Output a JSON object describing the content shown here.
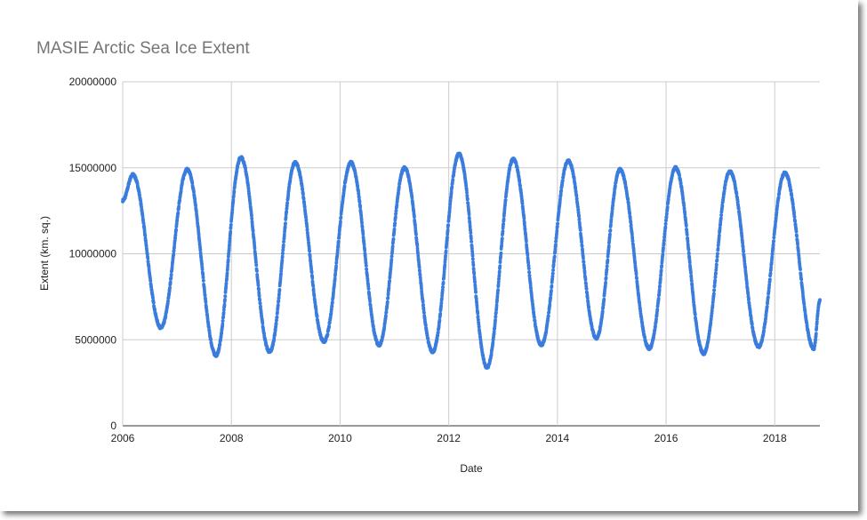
{
  "chart_data": {
    "type": "scatter",
    "title": "MASIE Arctic Sea Ice Extent",
    "xlabel": "Date",
    "ylabel": "Extent (km. sq.)",
    "xlim": [
      "2006-01-01",
      "2018-10-31"
    ],
    "ylim": [
      0,
      20000000
    ],
    "x_ticks": [
      "2006",
      "2008",
      "2010",
      "2012",
      "2014",
      "2016",
      "2018"
    ],
    "y_ticks": [
      "0",
      "5000000",
      "10000000",
      "15000000",
      "20000000"
    ],
    "grid": true,
    "legend": "none",
    "point_color": "#3b7ddd",
    "series": [
      {
        "points": [
          [
            "2006-01-01",
            13100000
          ],
          [
            "2006-03-10",
            14600000
          ],
          [
            "2006-09-15",
            5700000
          ],
          [
            "2007-03-10",
            14900000
          ],
          [
            "2007-09-20",
            4100000
          ],
          [
            "2008-03-05",
            15600000
          ],
          [
            "2008-09-15",
            4300000
          ],
          [
            "2009-03-05",
            15300000
          ],
          [
            "2009-09-15",
            4900000
          ],
          [
            "2010-03-15",
            15300000
          ],
          [
            "2010-09-20",
            4700000
          ],
          [
            "2011-03-10",
            15000000
          ],
          [
            "2011-09-15",
            4300000
          ],
          [
            "2012-03-10",
            15800000
          ],
          [
            "2012-09-15",
            3400000
          ],
          [
            "2013-03-10",
            15500000
          ],
          [
            "2013-09-15",
            4700000
          ],
          [
            "2014-03-15",
            15400000
          ],
          [
            "2014-09-20",
            5100000
          ],
          [
            "2015-02-25",
            14900000
          ],
          [
            "2015-09-10",
            4500000
          ],
          [
            "2016-03-05",
            15000000
          ],
          [
            "2016-09-10",
            4200000
          ],
          [
            "2017-03-05",
            14800000
          ],
          [
            "2017-09-15",
            4600000
          ],
          [
            "2018-03-10",
            14700000
          ],
          [
            "2018-09-20",
            4500000
          ],
          [
            "2018-10-31",
            7300000
          ]
        ]
      }
    ]
  }
}
